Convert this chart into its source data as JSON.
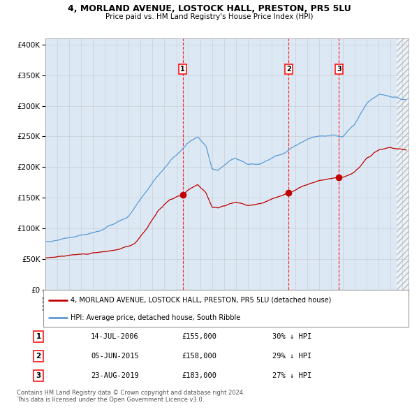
{
  "title": "4, MORLAND AVENUE, LOSTOCK HALL, PRESTON, PR5 5LU",
  "subtitle": "Price paid vs. HM Land Registry's House Price Index (HPI)",
  "legend_line1": "4, MORLAND AVENUE, LOSTOCK HALL, PRESTON, PR5 5LU (detached house)",
  "legend_line2": "HPI: Average price, detached house, South Ribble",
  "hpi_color": "#5B9BD5",
  "price_color": "#C00000",
  "bg_color": "#DCE9F5",
  "grid_color": "#AAAAAA",
  "sale_points": [
    {
      "date_num": 2006.54,
      "price": 155000,
      "label": "1"
    },
    {
      "date_num": 2015.43,
      "price": 158000,
      "label": "2"
    },
    {
      "date_num": 2019.65,
      "price": 183000,
      "label": "3"
    }
  ],
  "table_rows": [
    {
      "num": "1",
      "date": "14-JUL-2006",
      "price": "£155,000",
      "hpi": "30% ↓ HPI"
    },
    {
      "num": "2",
      "date": "05-JUN-2015",
      "price": "£158,000",
      "hpi": "29% ↓ HPI"
    },
    {
      "num": "3",
      "date": "23-AUG-2019",
      "price": "£183,000",
      "hpi": "27% ↓ HPI"
    }
  ],
  "footer": "Contains HM Land Registry data © Crown copyright and database right 2024.\nThis data is licensed under the Open Government Licence v3.0.",
  "xmin": 1995.0,
  "xmax": 2025.5,
  "ymin": 0,
  "ymax": 410000,
  "yticks": [
    0,
    50000,
    100000,
    150000,
    200000,
    250000,
    300000,
    350000,
    400000
  ]
}
